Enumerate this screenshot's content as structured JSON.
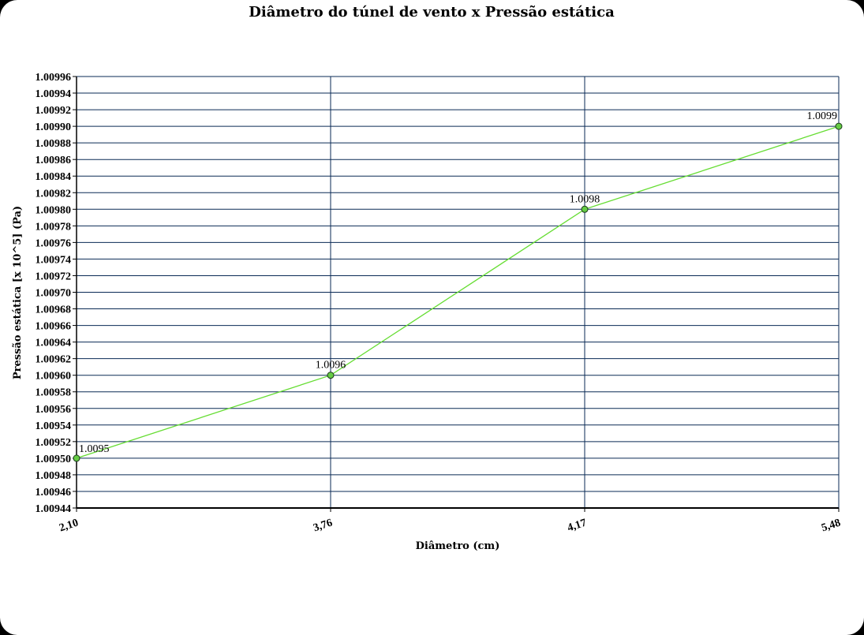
{
  "chart_data": {
    "type": "line",
    "title": "Diâmetro do túnel de vento x  Pressão estática",
    "xlabel": "Diâmetro (cm)",
    "ylabel": "Pressão estática [x 10^5] (Pa)",
    "categories": [
      "2,10",
      "3,76",
      "4,17",
      "5,48"
    ],
    "series": [
      {
        "values": [
          1.0095,
          1.0096,
          1.0098,
          1.0099
        ],
        "labels": [
          "1.0095",
          "1.0096",
          "1.0098",
          "1.0099"
        ]
      }
    ],
    "ylim": [
      1.00944,
      1.00996
    ],
    "yticks": [
      "1.00944",
      "1.00946",
      "1.00948",
      "1.00950",
      "1.00952",
      "1.00954",
      "1.00956",
      "1.00958",
      "1.00960",
      "1.00962",
      "1.00964",
      "1.00966",
      "1.00968",
      "1.00970",
      "1.00972",
      "1.00974",
      "1.00976",
      "1.00978",
      "1.00980",
      "1.00982",
      "1.00984",
      "1.00986",
      "1.00988",
      "1.00990",
      "1.00992",
      "1.00994",
      "1.00996"
    ],
    "grid": true,
    "legend": "none",
    "colors": {
      "line": "#66dd33",
      "marker_fill": "#66cc44",
      "grid": "#0a2a55",
      "background": "#ffffff",
      "frame": "#000000"
    }
  }
}
